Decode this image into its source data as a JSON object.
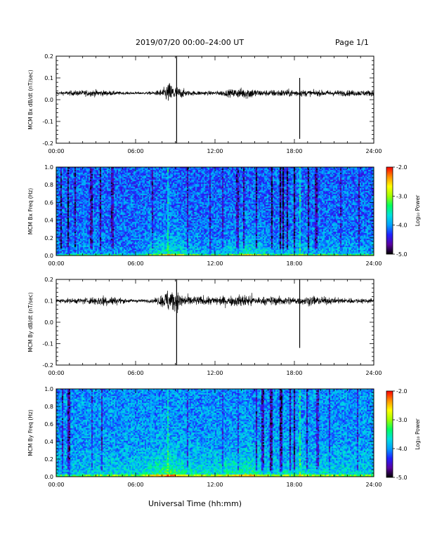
{
  "header": {
    "title": "2019/07/20  00:00–24:00 UT",
    "page": "Page 1/1"
  },
  "footer": {
    "xlabel": "Universal Time (hh:mm)"
  },
  "x_ticks": [
    "00:00",
    "06:00",
    "12:00",
    "18:00",
    "24:00"
  ],
  "colorbar": {
    "label": "Log₁₀ Power",
    "ticks": [
      "-2.0",
      "-3.0",
      "-4.0",
      "-5.0"
    ],
    "range": [
      -5.0,
      -2.0
    ],
    "colormap": [
      "#000000",
      "#5a00a0",
      "#2020ff",
      "#00a0ff",
      "#00e0e0",
      "#00ff60",
      "#a0ff00",
      "#ffff00",
      "#ff9000",
      "#ff0000"
    ]
  },
  "chart_data": [
    {
      "type": "line",
      "ylabel": "MCM Bx dB/dt (nT/sec)",
      "xlim": [
        0,
        24
      ],
      "ylim": [
        -0.2,
        0.2
      ],
      "y_ticks": [
        "-0.2",
        "-0.1",
        "0.0",
        "0.1",
        "0.2"
      ],
      "baseline": 0.03,
      "activity": [
        {
          "t": 0.0,
          "amp": 0.006
        },
        {
          "t": 1.0,
          "amp": 0.01
        },
        {
          "t": 2.0,
          "amp": 0.012
        },
        {
          "t": 3.0,
          "amp": 0.014
        },
        {
          "t": 4.0,
          "amp": 0.01
        },
        {
          "t": 5.0,
          "amp": 0.006
        },
        {
          "t": 6.5,
          "amp": 0.005
        },
        {
          "t": 7.5,
          "amp": 0.008
        },
        {
          "t": 8.1,
          "amp": 0.02
        },
        {
          "t": 8.5,
          "amp": 0.045
        },
        {
          "t": 9.0,
          "amp": 0.03
        },
        {
          "t": 10.0,
          "amp": 0.01
        },
        {
          "t": 12.0,
          "amp": 0.008
        },
        {
          "t": 13.5,
          "amp": 0.018
        },
        {
          "t": 14.5,
          "amp": 0.025
        },
        {
          "t": 15.5,
          "amp": 0.012
        },
        {
          "t": 17.0,
          "amp": 0.015
        },
        {
          "t": 18.0,
          "amp": 0.015
        },
        {
          "t": 19.5,
          "amp": 0.012
        },
        {
          "t": 21.0,
          "amp": 0.012
        },
        {
          "t": 24.0,
          "amp": 0.012
        }
      ],
      "spikes": [
        {
          "t": 9.1,
          "min": -0.2,
          "max": 0.2
        },
        {
          "t": 18.4,
          "min": -0.18,
          "max": 0.1
        }
      ]
    },
    {
      "type": "heatmap",
      "ylabel": "MCM Bx Freq (Hz)",
      "xlim": [
        0,
        24
      ],
      "ylim": [
        0.0,
        1.0
      ],
      "y_ticks": [
        "0.0",
        "0.2",
        "0.4",
        "0.6",
        "0.8",
        "1.0"
      ],
      "z_units": "Log10 Power",
      "background_level": -4.15,
      "enhancement": [
        {
          "t": 0.0,
          "level": 0.1
        },
        {
          "t": 2.0,
          "level": 0.2
        },
        {
          "t": 4.0,
          "level": 0.15
        },
        {
          "t": 6.0,
          "level": 0.1
        },
        {
          "t": 7.0,
          "level": 0.35
        },
        {
          "t": 8.5,
          "level": 0.6
        },
        {
          "t": 10.0,
          "level": 0.3
        },
        {
          "t": 12.0,
          "level": 0.2
        },
        {
          "t": 14.5,
          "level": 0.55
        },
        {
          "t": 16.0,
          "level": 0.3
        },
        {
          "t": 18.0,
          "level": 0.3
        },
        {
          "t": 20.0,
          "level": 0.3
        },
        {
          "t": 22.0,
          "level": 0.25
        },
        {
          "t": 24.0,
          "level": 0.2
        }
      ],
      "dark_bands": [
        {
          "t": 0.4,
          "width": 0.12,
          "depth": 0.7
        },
        {
          "t": 0.9,
          "width": 0.1,
          "depth": 0.8
        },
        {
          "t": 1.4,
          "width": 0.08,
          "depth": 0.6
        },
        {
          "t": 2.6,
          "width": 0.1,
          "depth": 0.5
        },
        {
          "t": 3.3,
          "width": 0.1,
          "depth": 0.6
        },
        {
          "t": 4.2,
          "width": 0.08,
          "depth": 0.5
        },
        {
          "t": 5.1,
          "width": 0.1,
          "depth": 0.45
        },
        {
          "t": 7.2,
          "width": 0.08,
          "depth": 0.5
        },
        {
          "t": 9.8,
          "width": 0.1,
          "depth": 0.5
        },
        {
          "t": 11.6,
          "width": 0.08,
          "depth": 0.45
        },
        {
          "t": 12.6,
          "width": 0.08,
          "depth": 0.45
        },
        {
          "t": 13.6,
          "width": 0.1,
          "depth": 0.5
        },
        {
          "t": 14.2,
          "width": 0.08,
          "depth": 0.55
        },
        {
          "t": 15.0,
          "width": 0.1,
          "depth": 0.7
        },
        {
          "t": 15.5,
          "width": 0.1,
          "depth": 0.8
        },
        {
          "t": 16.2,
          "width": 0.12,
          "depth": 0.8
        },
        {
          "t": 17.0,
          "width": 0.12,
          "depth": 0.9
        },
        {
          "t": 17.5,
          "width": 0.1,
          "depth": 0.8
        },
        {
          "t": 18.0,
          "width": 0.1,
          "depth": 0.85
        },
        {
          "t": 19.0,
          "width": 0.1,
          "depth": 0.7
        },
        {
          "t": 19.6,
          "width": 0.1,
          "depth": 0.6
        },
        {
          "t": 20.5,
          "width": 0.08,
          "depth": 0.5
        },
        {
          "t": 21.5,
          "width": 0.08,
          "depth": 0.45
        },
        {
          "t": 22.8,
          "width": 0.1,
          "depth": 0.5
        }
      ],
      "bright_lines": [
        {
          "t": 8.4,
          "level": 0.85
        },
        {
          "t": 18.4,
          "level": 0.9
        }
      ]
    },
    {
      "type": "line",
      "ylabel": "MCM By dB/dt (nT/sec)",
      "xlim": [
        0,
        24
      ],
      "ylim": [
        -0.2,
        0.2
      ],
      "y_ticks": [
        "-0.2",
        "-0.1",
        "0.0",
        "0.1",
        "0.2"
      ],
      "baseline": 0.1,
      "activity": [
        {
          "t": 0.0,
          "amp": 0.008
        },
        {
          "t": 1.0,
          "amp": 0.01
        },
        {
          "t": 2.0,
          "amp": 0.012
        },
        {
          "t": 3.0,
          "amp": 0.018
        },
        {
          "t": 3.6,
          "amp": 0.025
        },
        {
          "t": 4.5,
          "amp": 0.015
        },
        {
          "t": 5.5,
          "amp": 0.008
        },
        {
          "t": 6.5,
          "amp": 0.006
        },
        {
          "t": 7.5,
          "amp": 0.01
        },
        {
          "t": 8.1,
          "amp": 0.03
        },
        {
          "t": 8.5,
          "amp": 0.055
        },
        {
          "t": 9.0,
          "amp": 0.04
        },
        {
          "t": 10.0,
          "amp": 0.02
        },
        {
          "t": 12.0,
          "amp": 0.018
        },
        {
          "t": 13.5,
          "amp": 0.022
        },
        {
          "t": 14.5,
          "amp": 0.028
        },
        {
          "t": 15.5,
          "amp": 0.015
        },
        {
          "t": 17.0,
          "amp": 0.02
        },
        {
          "t": 18.0,
          "amp": 0.015
        },
        {
          "t": 19.5,
          "amp": 0.02
        },
        {
          "t": 21.0,
          "amp": 0.012
        },
        {
          "t": 24.0,
          "amp": 0.01
        }
      ],
      "spikes": [
        {
          "t": 9.1,
          "min": -0.2,
          "max": 0.2
        },
        {
          "t": 18.4,
          "min": -0.12,
          "max": 0.2
        }
      ]
    },
    {
      "type": "heatmap",
      "ylabel": "MCM By Freq (Hz)",
      "xlim": [
        0,
        24
      ],
      "ylim": [
        0.0,
        1.0
      ],
      "y_ticks": [
        "0.0",
        "0.2",
        "0.4",
        "0.6",
        "0.8",
        "1.0"
      ],
      "z_units": "Log10 Power",
      "background_level": -4.0,
      "enhancement": [
        {
          "t": 0.0,
          "level": 0.15
        },
        {
          "t": 2.0,
          "level": 0.25
        },
        {
          "t": 4.0,
          "level": 0.3
        },
        {
          "t": 6.0,
          "level": 0.25
        },
        {
          "t": 7.0,
          "level": 0.45
        },
        {
          "t": 8.5,
          "level": 0.7
        },
        {
          "t": 10.0,
          "level": 0.4
        },
        {
          "t": 12.0,
          "level": 0.35
        },
        {
          "t": 14.5,
          "level": 0.6
        },
        {
          "t": 16.0,
          "level": 0.35
        },
        {
          "t": 18.0,
          "level": 0.35
        },
        {
          "t": 20.0,
          "level": 0.35
        },
        {
          "t": 22.0,
          "level": 0.3
        },
        {
          "t": 24.0,
          "level": 0.25
        }
      ],
      "dark_bands": [
        {
          "t": 0.4,
          "width": 0.12,
          "depth": 0.6
        },
        {
          "t": 0.9,
          "width": 0.1,
          "depth": 0.7
        },
        {
          "t": 1.5,
          "width": 0.08,
          "depth": 0.5
        },
        {
          "t": 2.7,
          "width": 0.1,
          "depth": 0.45
        },
        {
          "t": 3.4,
          "width": 0.1,
          "depth": 0.5
        },
        {
          "t": 5.0,
          "width": 0.1,
          "depth": 0.4
        },
        {
          "t": 9.8,
          "width": 0.1,
          "depth": 0.45
        },
        {
          "t": 12.6,
          "width": 0.08,
          "depth": 0.4
        },
        {
          "t": 13.6,
          "width": 0.1,
          "depth": 0.45
        },
        {
          "t": 15.0,
          "width": 0.1,
          "depth": 0.6
        },
        {
          "t": 15.6,
          "width": 0.1,
          "depth": 0.7
        },
        {
          "t": 16.2,
          "width": 0.12,
          "depth": 0.75
        },
        {
          "t": 17.0,
          "width": 0.12,
          "depth": 0.85
        },
        {
          "t": 17.6,
          "width": 0.1,
          "depth": 0.75
        },
        {
          "t": 18.0,
          "width": 0.1,
          "depth": 0.8
        },
        {
          "t": 19.0,
          "width": 0.1,
          "depth": 0.6
        },
        {
          "t": 19.7,
          "width": 0.1,
          "depth": 0.55
        },
        {
          "t": 20.6,
          "width": 0.08,
          "depth": 0.45
        },
        {
          "t": 22.8,
          "width": 0.1,
          "depth": 0.45
        }
      ],
      "bright_lines": [
        {
          "t": 8.4,
          "level": 0.85
        },
        {
          "t": 18.4,
          "level": 0.9
        }
      ]
    }
  ]
}
